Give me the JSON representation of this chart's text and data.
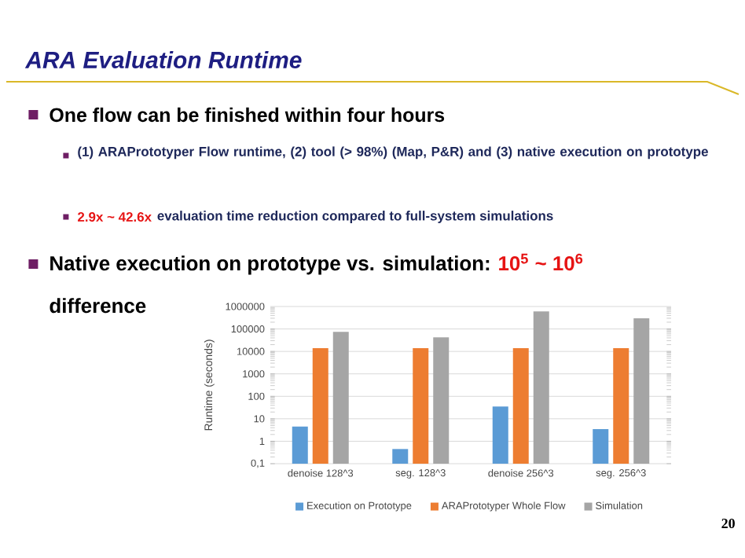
{
  "chart_data": {
    "type": "bar",
    "title": "ARA Evaluation Runtime",
    "ylabel": "Runtime (seconds)",
    "categories": [
      "denoise 128^3",
      "seg. 128^3",
      "denoise 256^3",
      "seg. 256^3"
    ],
    "series": [
      {
        "name": "Execution on Prototype",
        "color": "#5b9bd5",
        "values": [
          4.5,
          0.45,
          35,
          3.5
        ]
      },
      {
        "name": "ARAPrototyper Whole Flow",
        "color": "#ed7d31",
        "values": [
          14000,
          14000,
          14000,
          14000
        ]
      },
      {
        "name": "Simulation",
        "color": "#a5a5a5",
        "values": [
          75000,
          42000,
          600000,
          300000
        ]
      }
    ],
    "log": "y",
    "ylim": [
      0.1,
      1000000
    ],
    "yticks": [
      {
        "value": 0.1,
        "label": "0,1"
      },
      1,
      10,
      100,
      1000,
      10000,
      100000,
      1000000
    ],
    "grid": "y",
    "legend": "bottom",
    "annotations": [
      "One flow can be finished within four hours",
      "(1) ARAPrototyper Flow runtime, (2) tool (> 98%) (Map, P&R) and (3) native execution on prototype",
      "2.9x ~ 42.6x",
      "evaluation time reduction compared to full-system simulations",
      "Native execution on prototype vs. simulation:",
      "10$^{5}$ ~ 10$^{6}$",
      "difference",
      "20"
    ]
  }
}
